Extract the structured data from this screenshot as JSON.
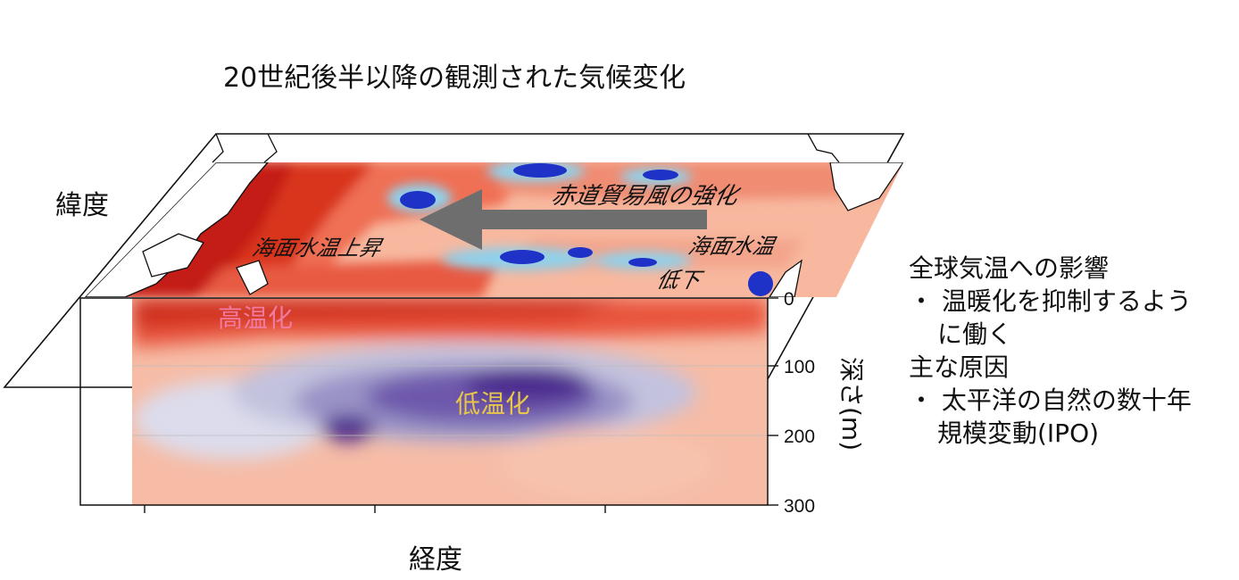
{
  "title": "20世紀後半以降の観測された気候変化",
  "axes": {
    "latitude_label": "緯度",
    "longitude_label": "経度",
    "depth_label": "深さ(m)",
    "depth_ticks": [
      "0",
      "100",
      "200",
      "300"
    ]
  },
  "surface_labels": {
    "trade_wind": "赤道貿易風の強化",
    "sst_rise": "海面水温上昇",
    "sst_fall_line1": "海面水温",
    "sst_fall_line2": "低下"
  },
  "section_labels": {
    "warming": "高温化",
    "cooling": "低温化"
  },
  "info": {
    "heading1": "全球気温への影響",
    "item1_line1": "・ 温暖化を抑制するよう",
    "item1_line2": "に働く",
    "heading2": "主な原因",
    "item2_line1": "・ 太平洋の自然の数十年",
    "item2_line2": "規模変動(IPO)"
  },
  "colors": {
    "warm_dark": "#c8271e",
    "warm_mid": "#ef6f55",
    "warm_light": "#f9c4ae",
    "cool_light": "#dcdcec",
    "cool_mid": "#9a93c6",
    "cool_dark": "#4b2a8e",
    "sea_blue": "#1e32c8",
    "arrow_gray": "#6e6e6e",
    "warming_text": "#f07aa0",
    "cooling_text": "#e7c64a"
  },
  "icons": [
    "trade-wind-arrow-icon"
  ]
}
